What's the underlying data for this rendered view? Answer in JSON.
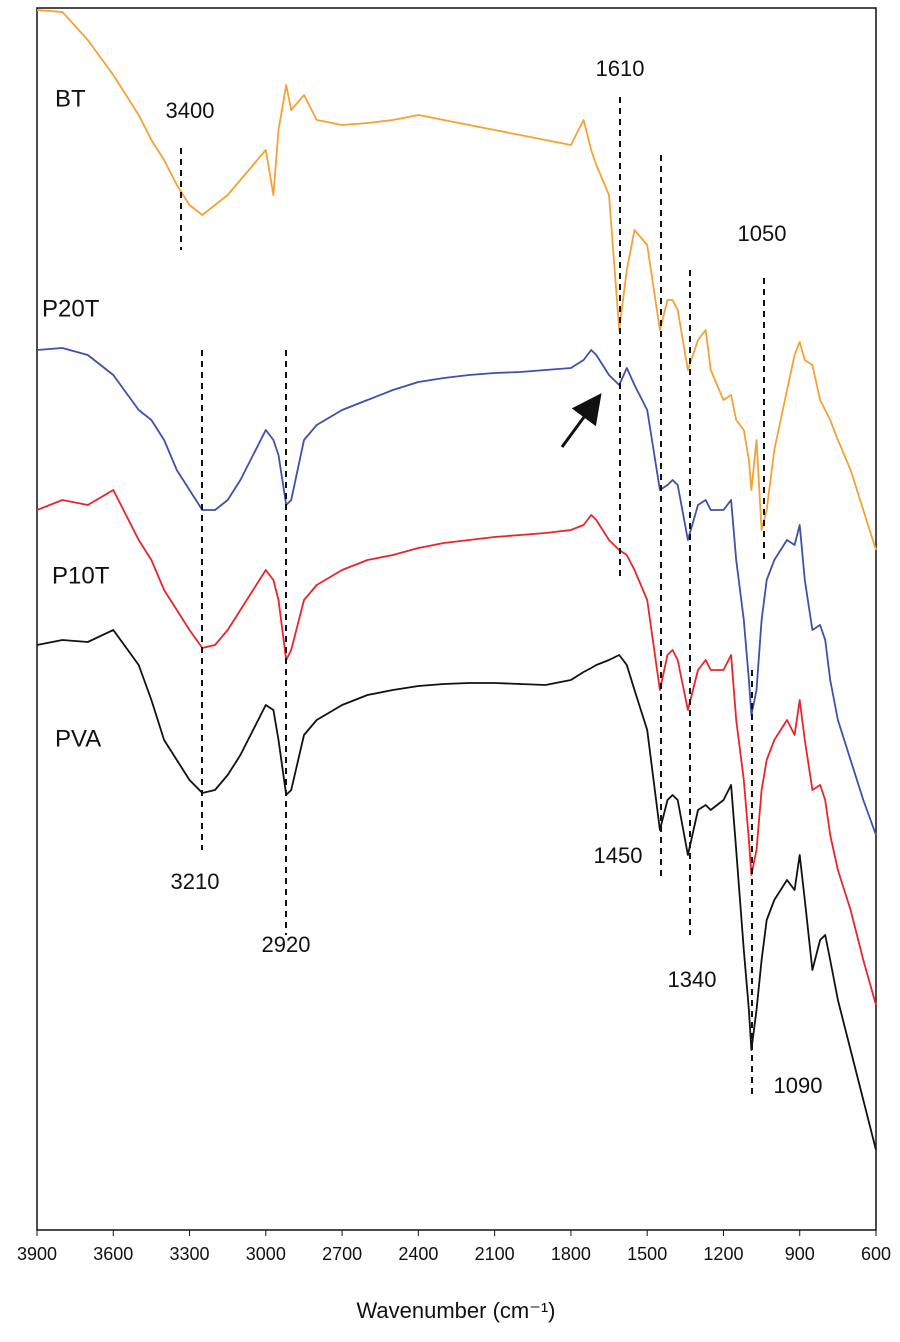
{
  "chart_data": {
    "type": "line",
    "x_label": "Wavenumber (cm⁻¹)",
    "x": [
      3900,
      3800,
      3700,
      3600,
      3500,
      3450,
      3400,
      3350,
      3300,
      3250,
      3200,
      3150,
      3100,
      3050,
      3000,
      2970,
      2950,
      2920,
      2900,
      2850,
      2800,
      2700,
      2600,
      2500,
      2400,
      2300,
      2200,
      2100,
      2000,
      1900,
      1800,
      1750,
      1720,
      1700,
      1650,
      1610,
      1580,
      1550,
      1500,
      1450,
      1420,
      1400,
      1380,
      1340,
      1300,
      1270,
      1250,
      1200,
      1170,
      1150,
      1120,
      1100,
      1090,
      1070,
      1050,
      1030,
      1000,
      950,
      920,
      900,
      880,
      850,
      820,
      800,
      780,
      750,
      700,
      650,
      600
    ],
    "series": [
      {
        "name": "BT",
        "color": "#f4a235",
        "values": [
          1220,
          1218,
          1190,
          1155,
          1115,
          1090,
          1070,
          1045,
          1025,
          1015,
          1025,
          1035,
          1050,
          1065,
          1080,
          1035,
          1100,
          1145,
          1120,
          1135,
          1110,
          1105,
          1107,
          1110,
          1115,
          1110,
          1105,
          1100,
          1095,
          1090,
          1085,
          1110,
          1080,
          1065,
          1035,
          900,
          960,
          1000,
          985,
          900,
          930,
          930,
          920,
          860,
          890,
          900,
          860,
          830,
          835,
          810,
          800,
          770,
          740,
          790,
          700,
          720,
          780,
          840,
          875,
          888,
          870,
          865,
          830,
          820,
          810,
          790,
          760,
          720,
          680
        ]
      },
      {
        "name": "P20T",
        "color": "#3f51a8",
        "values": [
          880,
          882,
          875,
          855,
          820,
          810,
          790,
          760,
          740,
          720,
          720,
          730,
          750,
          775,
          800,
          790,
          775,
          725,
          730,
          790,
          805,
          820,
          830,
          840,
          848,
          852,
          855,
          857,
          858,
          860,
          862,
          870,
          880,
          875,
          855,
          845,
          862,
          845,
          820,
          740,
          745,
          750,
          745,
          690,
          725,
          730,
          720,
          720,
          730,
          670,
          610,
          550,
          515,
          540,
          610,
          650,
          670,
          690,
          685,
          705,
          650,
          600,
          605,
          590,
          550,
          510,
          470,
          430,
          395
        ]
      },
      {
        "name": "P10T",
        "color": "#e8262a",
        "values": [
          720,
          730,
          725,
          740,
          690,
          670,
          640,
          620,
          600,
          582,
          585,
          600,
          620,
          640,
          660,
          650,
          630,
          570,
          580,
          630,
          645,
          660,
          670,
          675,
          682,
          687,
          690,
          693,
          695,
          697,
          700,
          705,
          715,
          710,
          690,
          680,
          675,
          660,
          630,
          540,
          575,
          580,
          570,
          520,
          560,
          570,
          560,
          560,
          575,
          510,
          450,
          390,
          355,
          380,
          440,
          470,
          490,
          510,
          495,
          530,
          490,
          440,
          445,
          430,
          395,
          360,
          320,
          270,
          225
        ]
      },
      {
        "name": "PVA",
        "color": "#111111",
        "values": [
          585,
          590,
          588,
          600,
          565,
          530,
          490,
          470,
          450,
          437,
          440,
          455,
          475,
          500,
          525,
          520,
          490,
          435,
          440,
          495,
          510,
          525,
          535,
          540,
          544,
          546,
          547,
          547,
          546,
          545,
          550,
          558,
          562,
          565,
          570,
          575,
          565,
          540,
          500,
          400,
          430,
          435,
          430,
          375,
          420,
          425,
          420,
          430,
          445,
          380,
          280,
          220,
          180,
          220,
          270,
          310,
          330,
          350,
          340,
          375,
          330,
          260,
          290,
          295,
          270,
          230,
          180,
          130,
          80
        ]
      }
    ],
    "annotations": [
      "3400",
      "1610",
      "1050",
      "3210",
      "2920",
      "1450",
      "1340",
      "1090"
    ],
    "xlim": [
      3900,
      600
    ],
    "xticks": [
      3900,
      3600,
      3300,
      3000,
      2700,
      2400,
      2100,
      1800,
      1500,
      1200,
      900,
      600
    ],
    "ylim": [
      0,
      1222
    ]
  }
}
